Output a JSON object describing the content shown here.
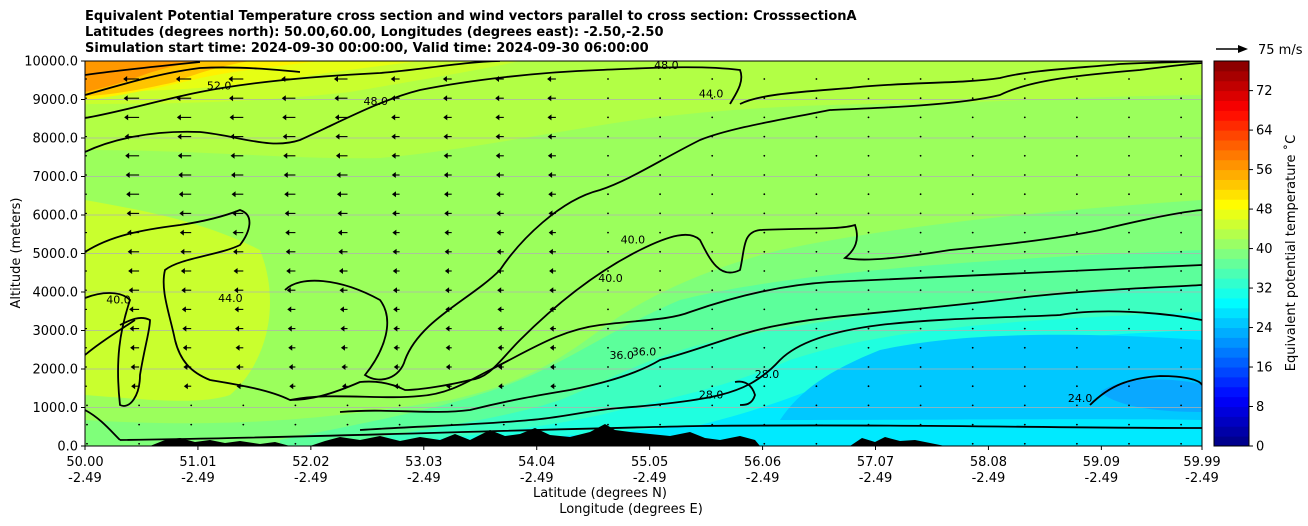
{
  "chart_data": {
    "type": "contour",
    "title_lines": [
      "Equivalent Potential Temperature cross section and wind vectors parallel to cross section: CrosssectionA",
      "Latitudes (degrees north): 50.00,60.00, Longitudes (degrees east): -2.50,-2.50",
      "Simulation start time: 2024-09-30 00:00:00, Valid time: 2024-09-30 06:00:00"
    ],
    "ylabel": "Altitude (meters)",
    "xlabel_lat": "Latitude (degrees N)",
    "xlabel_lon": "Longitude (degrees E)",
    "x_ticks": [
      {
        "lat": "50.00",
        "lon": "-2.49"
      },
      {
        "lat": "51.01",
        "lon": "-2.49"
      },
      {
        "lat": "52.02",
        "lon": "-2.49"
      },
      {
        "lat": "53.03",
        "lon": "-2.49"
      },
      {
        "lat": "54.04",
        "lon": "-2.49"
      },
      {
        "lat": "55.05",
        "lon": "-2.49"
      },
      {
        "lat": "56.06",
        "lon": "-2.49"
      },
      {
        "lat": "57.07",
        "lon": "-2.49"
      },
      {
        "lat": "58.08",
        "lon": "-2.49"
      },
      {
        "lat": "59.09",
        "lon": "-2.49"
      },
      {
        "lat": "59.99",
        "lon": "-2.49"
      }
    ],
    "y_ticks": [
      "0.0",
      "1000.0",
      "2000.0",
      "3000.0",
      "4000.0",
      "5000.0",
      "6000.0",
      "7000.0",
      "8000.0",
      "9000.0",
      "10000.0"
    ],
    "ylim": [
      0,
      10000
    ],
    "grid": "horizontal",
    "colorbar": {
      "label": "Equivalent potential temperature ˚C",
      "ticks": [
        "0",
        "8",
        "16",
        "24",
        "32",
        "40",
        "48",
        "56",
        "64",
        "72"
      ],
      "range": [
        0,
        78
      ],
      "colormap": "jet"
    },
    "quiver_key": "75 m/s",
    "contour_labels": [
      {
        "text": "52.0",
        "lat": 51.2,
        "alt": 9370
      },
      {
        "text": "48.0",
        "lat": 52.6,
        "alt": 8960
      },
      {
        "text": "48.0",
        "lat": 55.2,
        "alt": 9900
      },
      {
        "text": "44.0",
        "lat": 55.6,
        "alt": 9160
      },
      {
        "text": "40.0",
        "lat": 50.3,
        "alt": 3800
      },
      {
        "text": "44.0",
        "lat": 51.3,
        "alt": 3850
      },
      {
        "text": "40.0",
        "lat": 54.9,
        "alt": 5370
      },
      {
        "text": "40.0",
        "lat": 54.7,
        "alt": 4370
      },
      {
        "text": "36.0",
        "lat": 54.8,
        "alt": 2370
      },
      {
        "text": "36.0",
        "lat": 55.0,
        "alt": 2450
      },
      {
        "text": "28.0",
        "lat": 55.6,
        "alt": 1340
      },
      {
        "text": "28.0",
        "lat": 56.1,
        "alt": 1870
      },
      {
        "text": "24.0",
        "lat": 58.9,
        "alt": 1250
      }
    ],
    "contour_levels_drawn": [
      24,
      28,
      32,
      36,
      40,
      44,
      48,
      52
    ]
  }
}
